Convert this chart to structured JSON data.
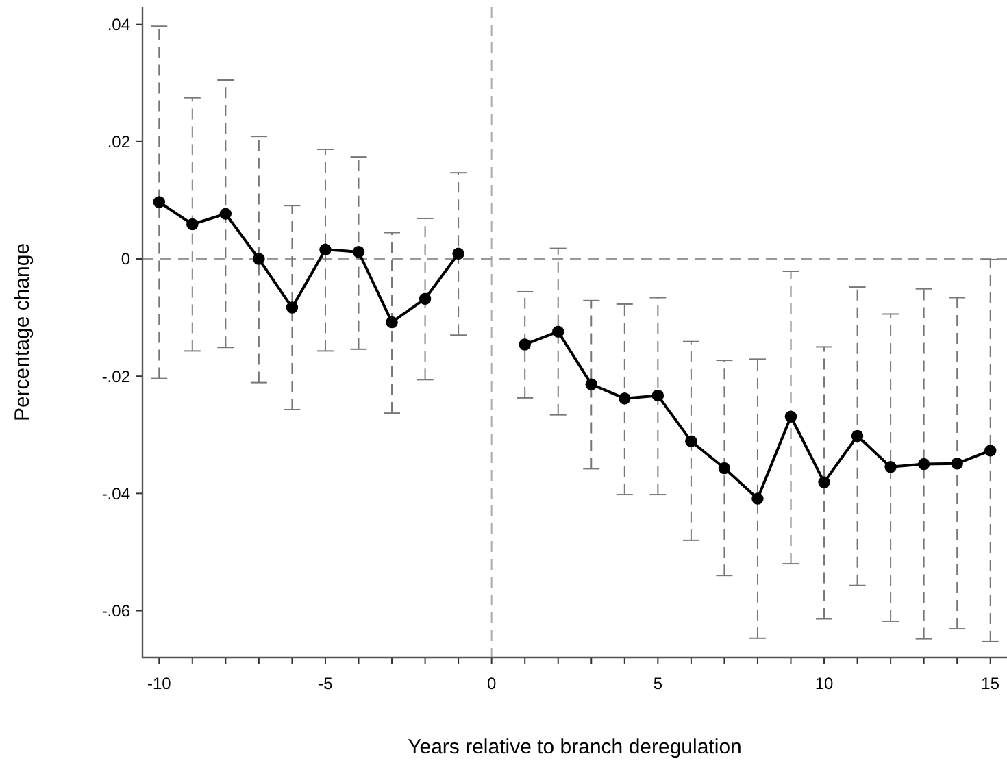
{
  "chart_data": {
    "type": "line",
    "xlabel": "Years relative to branch deregulation",
    "ylabel": "Percentage change",
    "x": [
      -10,
      -9,
      -8,
      -7,
      -6,
      -5,
      -4,
      -3,
      -2,
      -1,
      0,
      1,
      2,
      3,
      4,
      5,
      6,
      7,
      8,
      9,
      10,
      11,
      12,
      13,
      14,
      15
    ],
    "series": [
      {
        "color": "#000000",
        "values": [
          0.0097,
          0.0059,
          0.0077,
          0,
          -0.0083,
          0.0016,
          0.0012,
          -0.0108,
          -0.0068,
          0.0009,
          null,
          -0.0146,
          -0.0124,
          -0.0214,
          -0.0238,
          -0.0233,
          -0.0311,
          -0.0357,
          -0.0409,
          -0.0269,
          -0.0381,
          -0.0302,
          -0.0355,
          -0.035,
          -0.0349,
          -0.0327
        ],
        "errors": [
          [
            -0.0204,
            0.0397
          ],
          [
            -0.0157,
            0.0275
          ],
          [
            -0.0151,
            0.0305
          ],
          [
            -0.0211,
            0.0209
          ],
          [
            -0.0257,
            0.0091
          ],
          [
            -0.0157,
            0.0187
          ],
          [
            -0.0154,
            0.0174
          ],
          [
            -0.0263,
            0.0045
          ],
          [
            -0.0206,
            0.0069
          ],
          [
            -0.013,
            0.0147
          ],
          null,
          [
            -0.0237,
            -0.0056
          ],
          [
            -0.0266,
            0.0018
          ],
          [
            -0.0358,
            -0.0071
          ],
          [
            -0.0402,
            -0.0077
          ],
          [
            -0.0402,
            -0.0066
          ],
          [
            -0.048,
            -0.0141
          ],
          [
            -0.054,
            -0.0173
          ],
          [
            -0.0647,
            -0.0171
          ],
          [
            -0.052,
            -0.0021
          ],
          [
            -0.0614,
            -0.015
          ],
          [
            -0.0557,
            -0.0048
          ],
          [
            -0.0618,
            -0.0094
          ],
          [
            -0.0648,
            -0.0051
          ],
          [
            -0.0631,
            -0.0066
          ],
          [
            -0.0653,
            -0.0001
          ]
        ]
      }
    ],
    "marker": "circle",
    "line_style": "solid",
    "xlim": [
      -10.5,
      15.5
    ],
    "ylim": [
      -0.068,
      0.043
    ],
    "xticks": [
      -10,
      {
        "value": -9,
        "label": null
      },
      {
        "value": -8,
        "label": null
      },
      {
        "value": -7,
        "label": null
      },
      {
        "value": -6,
        "label": null
      },
      -5,
      {
        "value": -4,
        "label": null
      },
      {
        "value": -3,
        "label": null
      },
      {
        "value": -2,
        "label": null
      },
      {
        "value": -1,
        "label": null
      },
      0,
      {
        "value": 1,
        "label": null
      },
      {
        "value": 2,
        "label": null
      },
      {
        "value": 3,
        "label": null
      },
      {
        "value": 4,
        "label": null
      },
      5,
      {
        "value": 6,
        "label": null
      },
      {
        "value": 7,
        "label": null
      },
      {
        "value": 8,
        "label": null
      },
      {
        "value": 9,
        "label": null
      },
      10,
      {
        "value": 11,
        "label": null
      },
      {
        "value": 12,
        "label": null
      },
      {
        "value": 13,
        "label": null
      },
      {
        "value": 14,
        "label": null
      },
      15
    ],
    "yticks": [
      {
        "value": 0.04,
        "label": ".04"
      },
      {
        "value": 0.02,
        "label": ".02"
      },
      0,
      {
        "value": -0.02,
        "label": "-.02"
      },
      {
        "value": -0.04,
        "label": "-.04"
      },
      {
        "value": -0.06,
        "label": "-.06"
      }
    ],
    "ref_lines": [
      {
        "axis": "x",
        "value": 0,
        "color": "#aaaaaa",
        "line_style": "dashed"
      },
      {
        "axis": "y",
        "value": 0,
        "color": "#999999",
        "line_style": "dashed"
      }
    ],
    "grid": false
  }
}
